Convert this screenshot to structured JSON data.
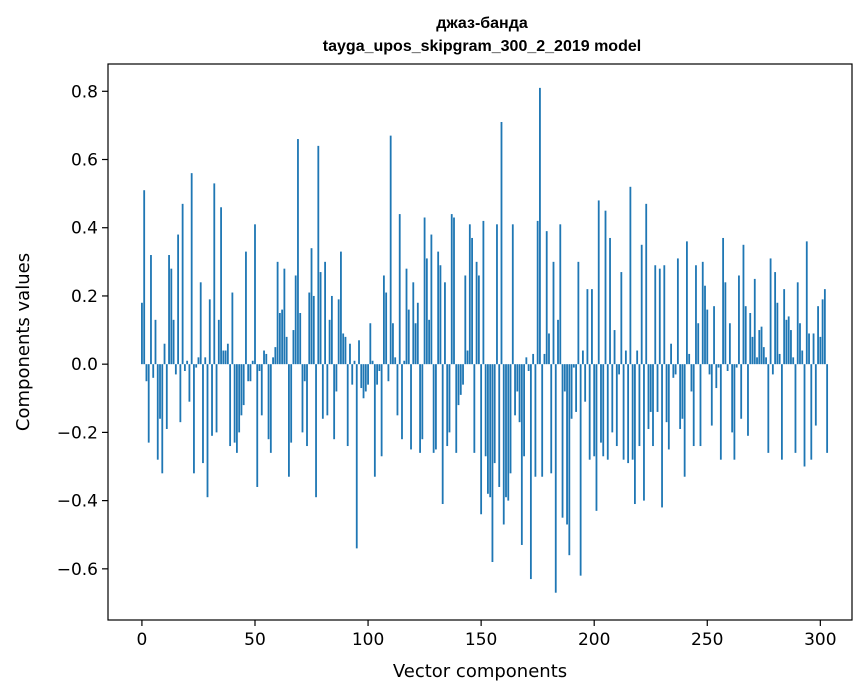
{
  "chart_data": {
    "type": "bar",
    "title_line1": "джаз-банда",
    "title_line2": "tayga_upos_skipgram_300_2_2019 model",
    "xlabel": "Vector components",
    "ylabel": "Components values",
    "xlim": [
      -15,
      314
    ],
    "ylim": [
      -0.75,
      0.88
    ],
    "xticks": [
      0,
      50,
      100,
      150,
      200,
      250,
      300
    ],
    "yticks": [
      -0.6,
      -0.4,
      -0.2,
      0.0,
      0.2,
      0.4,
      0.6,
      0.8
    ],
    "ytick_labels": [
      "−0.6",
      "−0.4",
      "−0.2",
      "0.0",
      "0.2",
      "0.4",
      "0.6",
      "0.8"
    ],
    "bar_color": "#1f77b4",
    "grid": false,
    "values": [
      0.18,
      0.51,
      -0.05,
      -0.23,
      0.32,
      -0.04,
      0.13,
      -0.28,
      -0.16,
      -0.32,
      0.06,
      -0.19,
      0.32,
      0.28,
      0.13,
      -0.03,
      0.38,
      -0.17,
      0.47,
      -0.02,
      0.01,
      -0.11,
      0.56,
      -0.32,
      -0.01,
      0.02,
      0.24,
      -0.29,
      0.02,
      -0.39,
      0.19,
      -0.21,
      0.53,
      -0.2,
      0.13,
      0.46,
      0.04,
      0.04,
      0.06,
      -0.24,
      0.21,
      -0.23,
      -0.26,
      -0.2,
      -0.15,
      -0.12,
      0.33,
      -0.05,
      -0.05,
      0.01,
      0.41,
      -0.36,
      -0.02,
      -0.15,
      0.04,
      0.03,
      -0.22,
      -0.26,
      0.02,
      0.05,
      0.3,
      0.15,
      0.16,
      0.28,
      0.08,
      -0.33,
      -0.23,
      0.1,
      0.26,
      0.66,
      0.15,
      -0.2,
      -0.05,
      -0.24,
      0.21,
      0.34,
      0.2,
      -0.39,
      0.64,
      0.27,
      -0.16,
      0.3,
      -0.15,
      0.13,
      0.2,
      -0.22,
      -0.08,
      0.19,
      0.33,
      0.09,
      0.08,
      -0.24,
      0.06,
      -0.06,
      0.01,
      -0.54,
      0.07,
      -0.07,
      -0.1,
      -0.08,
      -0.06,
      0.12,
      0.01,
      -0.33,
      -0.06,
      -0.02,
      -0.27,
      0.26,
      0.21,
      -0.05,
      0.67,
      0.12,
      0.02,
      -0.15,
      0.44,
      -0.22,
      0.01,
      0.28,
      0.16,
      -0.25,
      0.24,
      0.12,
      0.18,
      -0.26,
      -0.22,
      0.43,
      0.31,
      0.13,
      0.38,
      -0.26,
      -0.25,
      0.33,
      0.29,
      -0.41,
      0.24,
      -0.24,
      -0.2,
      0.44,
      0.43,
      -0.26,
      -0.12,
      -0.09,
      -0.06,
      0.26,
      0.04,
      0.41,
      0.37,
      -0.26,
      0.3,
      0.26,
      -0.44,
      0.42,
      -0.27,
      -0.38,
      -0.39,
      -0.58,
      -0.29,
      0.41,
      -0.36,
      0.71,
      -0.47,
      -0.39,
      -0.4,
      -0.32,
      0.41,
      -0.15,
      -0.08,
      -0.17,
      -0.53,
      -0.27,
      0.02,
      -0.02,
      -0.63,
      0.03,
      -0.33,
      0.42,
      0.81,
      -0.33,
      0.03,
      0.39,
      0.09,
      -0.32,
      0.3,
      -0.67,
      0.13,
      0.41,
      -0.45,
      -0.08,
      -0.47,
      -0.56,
      -0.16,
      -0.01,
      -0.14,
      0.3,
      -0.62,
      0.04,
      -0.11,
      0.22,
      -0.28,
      0.22,
      -0.27,
      -0.43,
      0.48,
      -0.23,
      -0.27,
      0.45,
      -0.28,
      0.37,
      -0.2,
      0.1,
      -0.24,
      -0.03,
      0.27,
      -0.28,
      0.04,
      -0.29,
      0.52,
      -0.28,
      -0.41,
      0.04,
      -0.24,
      0.35,
      -0.4,
      0.47,
      -0.19,
      -0.14,
      -0.24,
      0.29,
      -0.14,
      0.28,
      -0.42,
      0.29,
      -0.17,
      -0.25,
      0.06,
      -0.04,
      -0.03,
      0.31,
      -0.19,
      -0.16,
      -0.33,
      0.36,
      0.03,
      -0.08,
      -0.24,
      0.29,
      0.12,
      -0.24,
      0.3,
      0.23,
      0.16,
      -0.03,
      -0.18,
      0.17,
      -0.07,
      -0.01,
      -0.28,
      0.37,
      0.24,
      -0.02,
      0.12,
      -0.2,
      -0.28,
      -0.01,
      0.26,
      -0.16,
      0.35,
      0.17,
      -0.21,
      0.15,
      0.08,
      0.25,
      0.02,
      0.1,
      0.11,
      0.05,
      0.02,
      -0.26,
      0.31,
      -0.03,
      0.27,
      0.18,
      0.03,
      -0.28,
      0.22,
      0.13,
      0.14,
      0.1,
      0.02,
      -0.26,
      0.24,
      0.12,
      0.04,
      -0.3,
      0.36,
      0.09,
      -0.28,
      0.09,
      -0.18,
      0.17,
      0.08,
      0.19,
      0.22,
      -0.26
    ]
  }
}
